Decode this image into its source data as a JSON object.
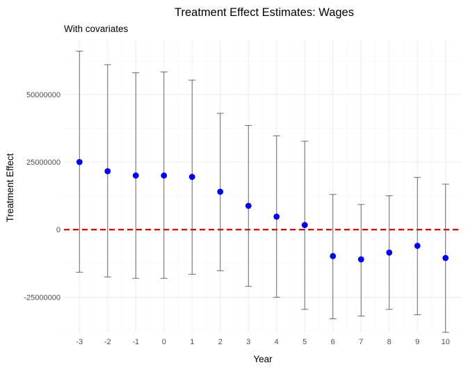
{
  "chart_data": {
    "type": "scatter",
    "title": "Treatment Effect Estimates: Wages",
    "subtitle": "With covariates",
    "xlabel": "Year",
    "ylabel": "Treatment Effect",
    "x": [
      -3,
      -2,
      -1,
      0,
      1,
      2,
      3,
      4,
      5,
      6,
      7,
      8,
      9,
      10
    ],
    "x_tick_labels": [
      "-3",
      "-2",
      "-1",
      "0",
      "1",
      "2",
      "3",
      "4",
      "5",
      "6",
      "7",
      "8",
      "9",
      "10"
    ],
    "y_ticks": [
      -25000000,
      0,
      25000000,
      50000000
    ],
    "y_tick_labels": [
      "-25000000",
      "0",
      "25000000",
      "50000000"
    ],
    "series": [
      {
        "values": [
          25000000,
          21600000,
          20000000,
          20000000,
          19500000,
          14000000,
          8800000,
          4800000,
          1700000,
          -9800000,
          -11000000,
          -8500000,
          -6000000,
          -10500000
        ],
        "lower": [
          -15800000,
          -17500000,
          -18000000,
          -18000000,
          -16500000,
          -15200000,
          -21000000,
          -25000000,
          -29500000,
          -33000000,
          -32000000,
          -29500000,
          -31500000,
          -38000000
        ],
        "upper": [
          66000000,
          61000000,
          58000000,
          58300000,
          55300000,
          43000000,
          38500000,
          34700000,
          32700000,
          13000000,
          9300000,
          12500000,
          19300000,
          16800000
        ]
      }
    ],
    "reference_line": {
      "y": 0,
      "style": "dashed",
      "color": "#cc0000"
    },
    "xlim": [
      -3.55,
      10.55
    ],
    "ylim": [
      -38000000,
      70000000
    ],
    "point_color": "#0000ee",
    "grid": true,
    "legend": "none"
  }
}
